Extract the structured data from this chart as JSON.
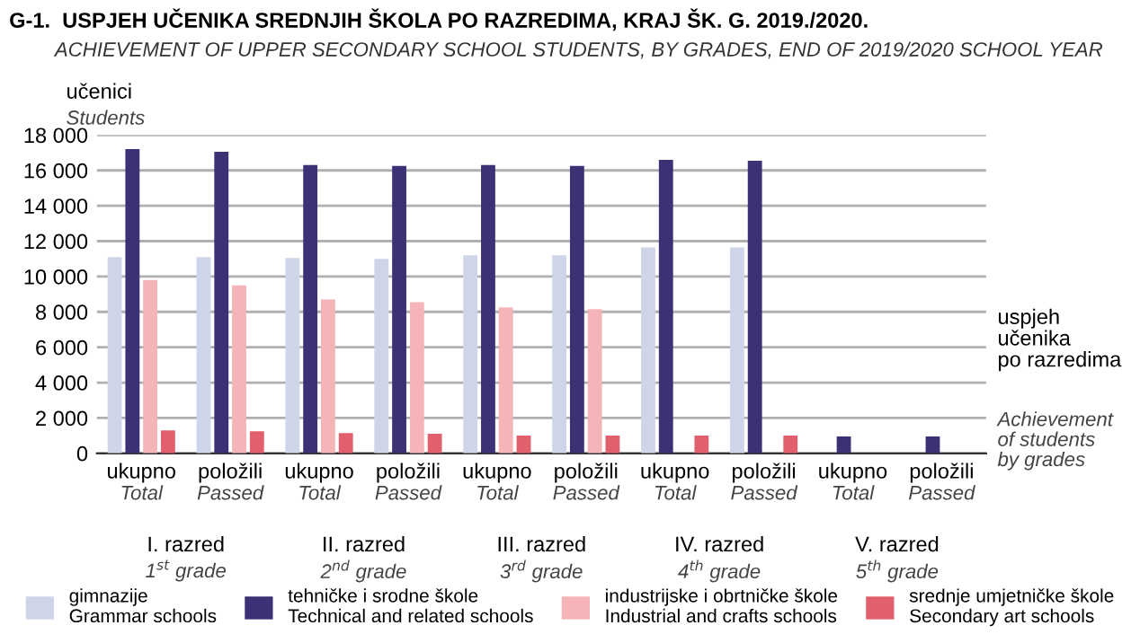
{
  "chart_data": {
    "type": "bar",
    "title": "G-1.  USPJEH UČENIKA SREDNJIH ŠKOLA PO RAZREDIMA, KRAJ ŠK. G. 2019./2020.",
    "subtitle": "ACHIEVEMENT OF UPPER SECONDARY SCHOOL STUDENTS, BY GRADES, END OF 2019/2020 SCHOOL YEAR",
    "ylabel": "učenici\nStudents",
    "xlabel": "uspjeh\nučenika\npo razredima\nAchievement\nof students\nby grades",
    "categories": [
      "ukupno\nTotal",
      "položili\nPassed",
      "ukupno\nTotal",
      "položili\nPassed",
      "ukupno\nTotal",
      "položili\nPassed",
      "ukupno\nTotal",
      "položili\nPassed",
      "ukupno\nTotal",
      "položili\nPassed"
    ],
    "annotations": [
      "I. razred\n1$^{st}$ grade",
      "II. razred\n2$^{nd}$ grade",
      "III. razred\n3$^{rd}$ grade",
      "IV. razred\n4$^{th}$ grade",
      "V. razred\n5$^{th}$ grade"
    ],
    "series": [
      {
        "name": "gimnazije\nGrammar schools",
        "color": "#cfd5e8",
        "values": [
          11100,
          11100,
          11050,
          11000,
          11200,
          11200,
          11650,
          11650,
          null,
          null
        ]
      },
      {
        "name": "tehničke i srodne škole\nTechnical and related schools",
        "color": "#3d3176",
        "values": [
          17200,
          17050,
          16300,
          16250,
          16300,
          16250,
          16600,
          16550,
          950,
          950
        ]
      },
      {
        "name": "industrijske i obrtničke škole\nIndustrial and crafts schools",
        "color": "#f4b4b8",
        "values": [
          9800,
          9500,
          8700,
          8550,
          8250,
          8150,
          null,
          null,
          null,
          null
        ]
      },
      {
        "name": "srednje umjetničke škole\nSecondary art schools",
        "color": "#e2606e",
        "values": [
          1300,
          1250,
          1150,
          1100,
          1000,
          1000,
          1000,
          1000,
          null,
          null
        ]
      }
    ],
    "ylim": [
      0,
      18000
    ],
    "yticks": [
      {
        "value": 0,
        "label": "0"
      },
      {
        "value": 2000,
        "label": "2 000"
      },
      {
        "value": 4000,
        "label": "4 000"
      },
      {
        "value": 6000,
        "label": "6 000"
      },
      {
        "value": 8000,
        "label": "8 000"
      },
      {
        "value": 10000,
        "label": "10 000"
      },
      {
        "value": 12000,
        "label": "12 000"
      },
      {
        "value": 14000,
        "label": "14 000"
      },
      {
        "value": 16000,
        "label": "16 000"
      },
      {
        "value": 18000,
        "label": "18 000"
      }
    ],
    "grid": "y",
    "legend": "bottom"
  }
}
